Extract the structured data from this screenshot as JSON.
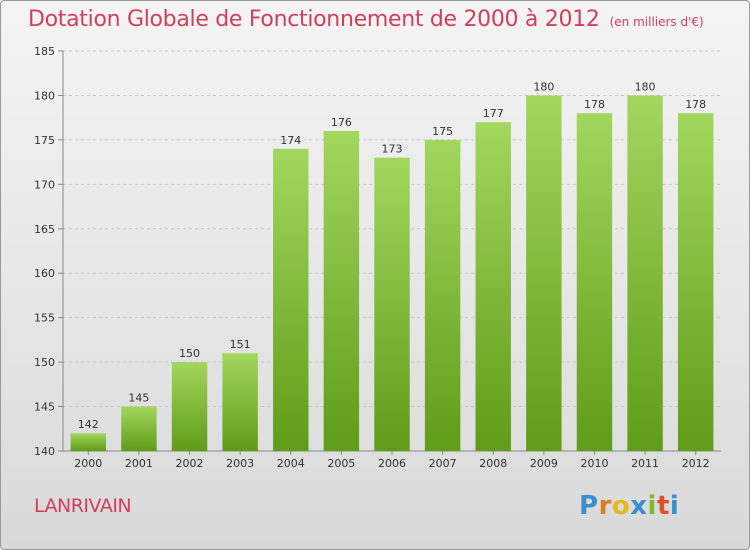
{
  "header": {
    "title": "Dotation Globale de Fonctionnement de 2000 à 2012",
    "unit": "(en milliers d'€)"
  },
  "footer": {
    "commune": "LANRIVAIN",
    "logo_text": "Proxiti"
  },
  "colors": {
    "title": "#d0405a",
    "bar_light": "#9fd45a",
    "bar_dark": "#5f9c18",
    "grid": "#c8c8c8",
    "logo": [
      "#3a8fd0",
      "#e07b1f",
      "#e5b820",
      "#3a8fd0",
      "#7dbb2a",
      "#e04f2a",
      "#3a8fd0"
    ]
  },
  "chart_data": {
    "type": "bar",
    "title": "Dotation Globale de Fonctionnement de 2000 à 2012",
    "subtitle": "(en milliers d'€)",
    "categories": [
      "2000",
      "2001",
      "2002",
      "2003",
      "2004",
      "2005",
      "2006",
      "2007",
      "2008",
      "2009",
      "2010",
      "2011",
      "2012"
    ],
    "values": [
      142,
      145,
      150,
      151,
      174,
      176,
      173,
      175,
      177,
      180,
      178,
      180,
      178
    ],
    "ylim": [
      140,
      185
    ],
    "yticks": [
      140,
      145,
      150,
      155,
      160,
      165,
      170,
      175,
      180,
      185
    ],
    "xlabel": "",
    "ylabel": "",
    "grid": true,
    "data_labels": true
  }
}
